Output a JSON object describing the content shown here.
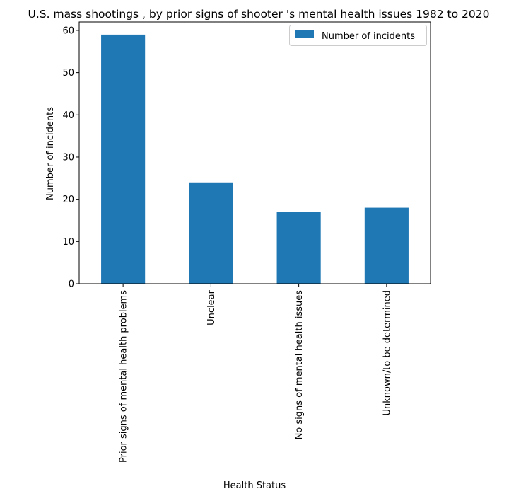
{
  "chart_data": {
    "type": "bar",
    "title": "U.S. mass shootings , by prior signs of shooter 's mental health issues 1982 to 2020",
    "xlabel": "Health Status",
    "ylabel": "Number of incidents",
    "categories": [
      "Prior signs of mental health problems",
      "Unclear",
      "No signs of mental health issues",
      "Unknown/to be determined"
    ],
    "series": [
      {
        "name": "Number of incidents",
        "values": [
          59,
          24,
          17,
          18
        ]
      }
    ],
    "ylim": [
      0,
      62
    ],
    "yticks": [
      0,
      10,
      20,
      30,
      40,
      50,
      60
    ],
    "grid": false,
    "legend_position": "top-right",
    "colors": {
      "bar": "#1f77b4"
    }
  }
}
